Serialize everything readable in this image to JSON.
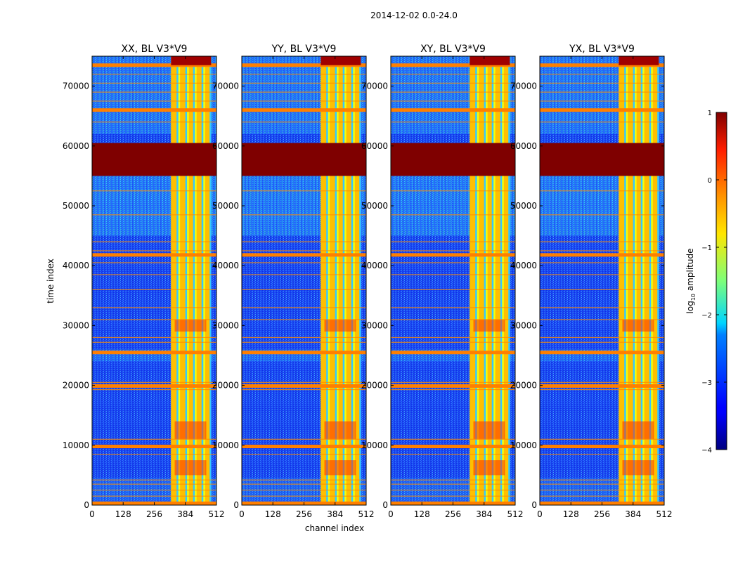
{
  "figure": {
    "suptitle": "2014-12-02 0.0-24.0"
  },
  "colorbar": {
    "label": "log$_{10}$ amplitude",
    "label_main": "log",
    "label_sub": "10",
    "label_rest": " amplitude",
    "ticks": [
      1,
      0,
      -1,
      -2,
      -3,
      -4
    ],
    "tick_labels": [
      "1",
      "0",
      "−1",
      "−2",
      "−3",
      "−4"
    ],
    "range": [
      -4,
      1
    ],
    "colormap": "jet"
  },
  "chart_data": {
    "type": "heatmap",
    "title": "2014-12-02 0.0-24.0",
    "xlabel": "channel index",
    "ylabel": "time index",
    "xlim": [
      0,
      512
    ],
    "ylim": [
      0,
      75000
    ],
    "xticks": [
      0,
      128,
      256,
      384,
      512
    ],
    "yticks": [
      0,
      10000,
      20000,
      30000,
      40000,
      50000,
      60000,
      70000
    ],
    "panels": [
      {
        "name": "XX, BL V3*V9"
      },
      {
        "name": "YY, BL V3*V9"
      },
      {
        "name": "XY, BL V3*V9"
      },
      {
        "name": "YX, BL V3*V9"
      }
    ],
    "saturated_time_ranges": [
      [
        55000,
        60500
      ]
    ],
    "bright_channel_range": [
      325,
      490
    ],
    "bright_rows": [
      300,
      9800,
      19900,
      25500,
      41800,
      66000,
      73500
    ]
  }
}
